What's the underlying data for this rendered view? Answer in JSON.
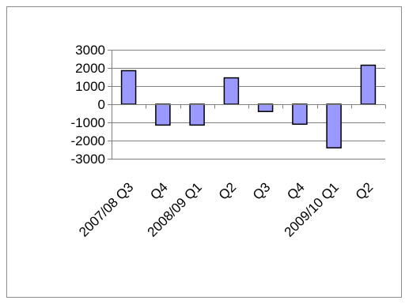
{
  "chart_data": {
    "type": "bar",
    "categories": [
      "2007/08 Q3",
      "Q4",
      "2008/09 Q1",
      "Q2",
      "Q3",
      "Q4",
      "2009/10 Q1",
      "Q2"
    ],
    "values": [
      1850,
      -1150,
      -1150,
      1450,
      -400,
      -1100,
      -2400,
      2150
    ],
    "title": "",
    "xlabel": "",
    "ylabel": "",
    "ylim": [
      -3000,
      3000
    ],
    "yticks": [
      3000,
      2000,
      1000,
      0,
      -1000,
      -2000,
      -3000
    ],
    "ytick_labels": [
      "3000",
      "2000",
      "1000",
      "0",
      "-1000",
      "-2000",
      "-3000"
    ],
    "grid": true,
    "legend": "none",
    "colors": {
      "bar_fill": "#9999ff",
      "bar_stroke": "#000000",
      "grid": "#808080",
      "axis": "#808080",
      "frame": "#8c8c8c"
    }
  }
}
